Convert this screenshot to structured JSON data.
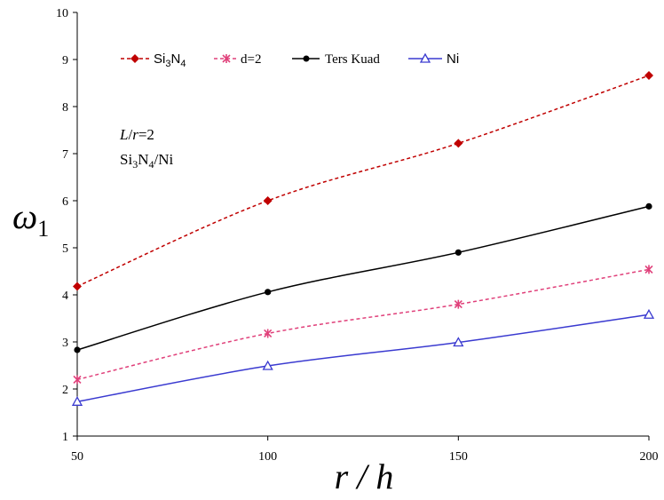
{
  "chart_data": {
    "type": "line",
    "xlabel": "r / h",
    "ylabel": {
      "main": "ω",
      "sub": "1"
    },
    "x_ticks": [
      "50",
      "100",
      "150",
      "200"
    ],
    "y_ticks": [
      "1",
      "2",
      "3",
      "4",
      "5",
      "6",
      "7",
      "8",
      "9",
      "10"
    ],
    "xlim": [
      50,
      200
    ],
    "ylim": [
      1,
      10
    ],
    "x": [
      50,
      100,
      150,
      200
    ],
    "series": [
      {
        "name": "Si3N4",
        "name_parts": [
          "Si",
          "3",
          "N",
          "4"
        ],
        "values": [
          4.18,
          6.0,
          7.22,
          8.66
        ],
        "color": "#c00000",
        "dash": "dashed",
        "marker": "diamond"
      },
      {
        "name": "d=2",
        "values": [
          2.2,
          3.18,
          3.8,
          4.54
        ],
        "color": "#e0407a",
        "dash": "dashed",
        "marker": "star"
      },
      {
        "name": "Ters Kuad",
        "values": [
          2.83,
          4.06,
          4.9,
          5.88
        ],
        "color": "#000000",
        "dash": "solid",
        "marker": "circle"
      },
      {
        "name": "Ni",
        "values": [
          1.73,
          2.49,
          2.99,
          3.58
        ],
        "color": "#3a3ad0",
        "dash": "solid",
        "marker": "triangle"
      }
    ],
    "annotations": {
      "ratio_label": {
        "italic_a": "L",
        "sep": "/",
        "italic_b": "r",
        "rest": "=2"
      },
      "material_label": [
        "Si",
        "3",
        "N",
        "4",
        "/Ni"
      ]
    },
    "legend_position": "top",
    "grid": false
  }
}
